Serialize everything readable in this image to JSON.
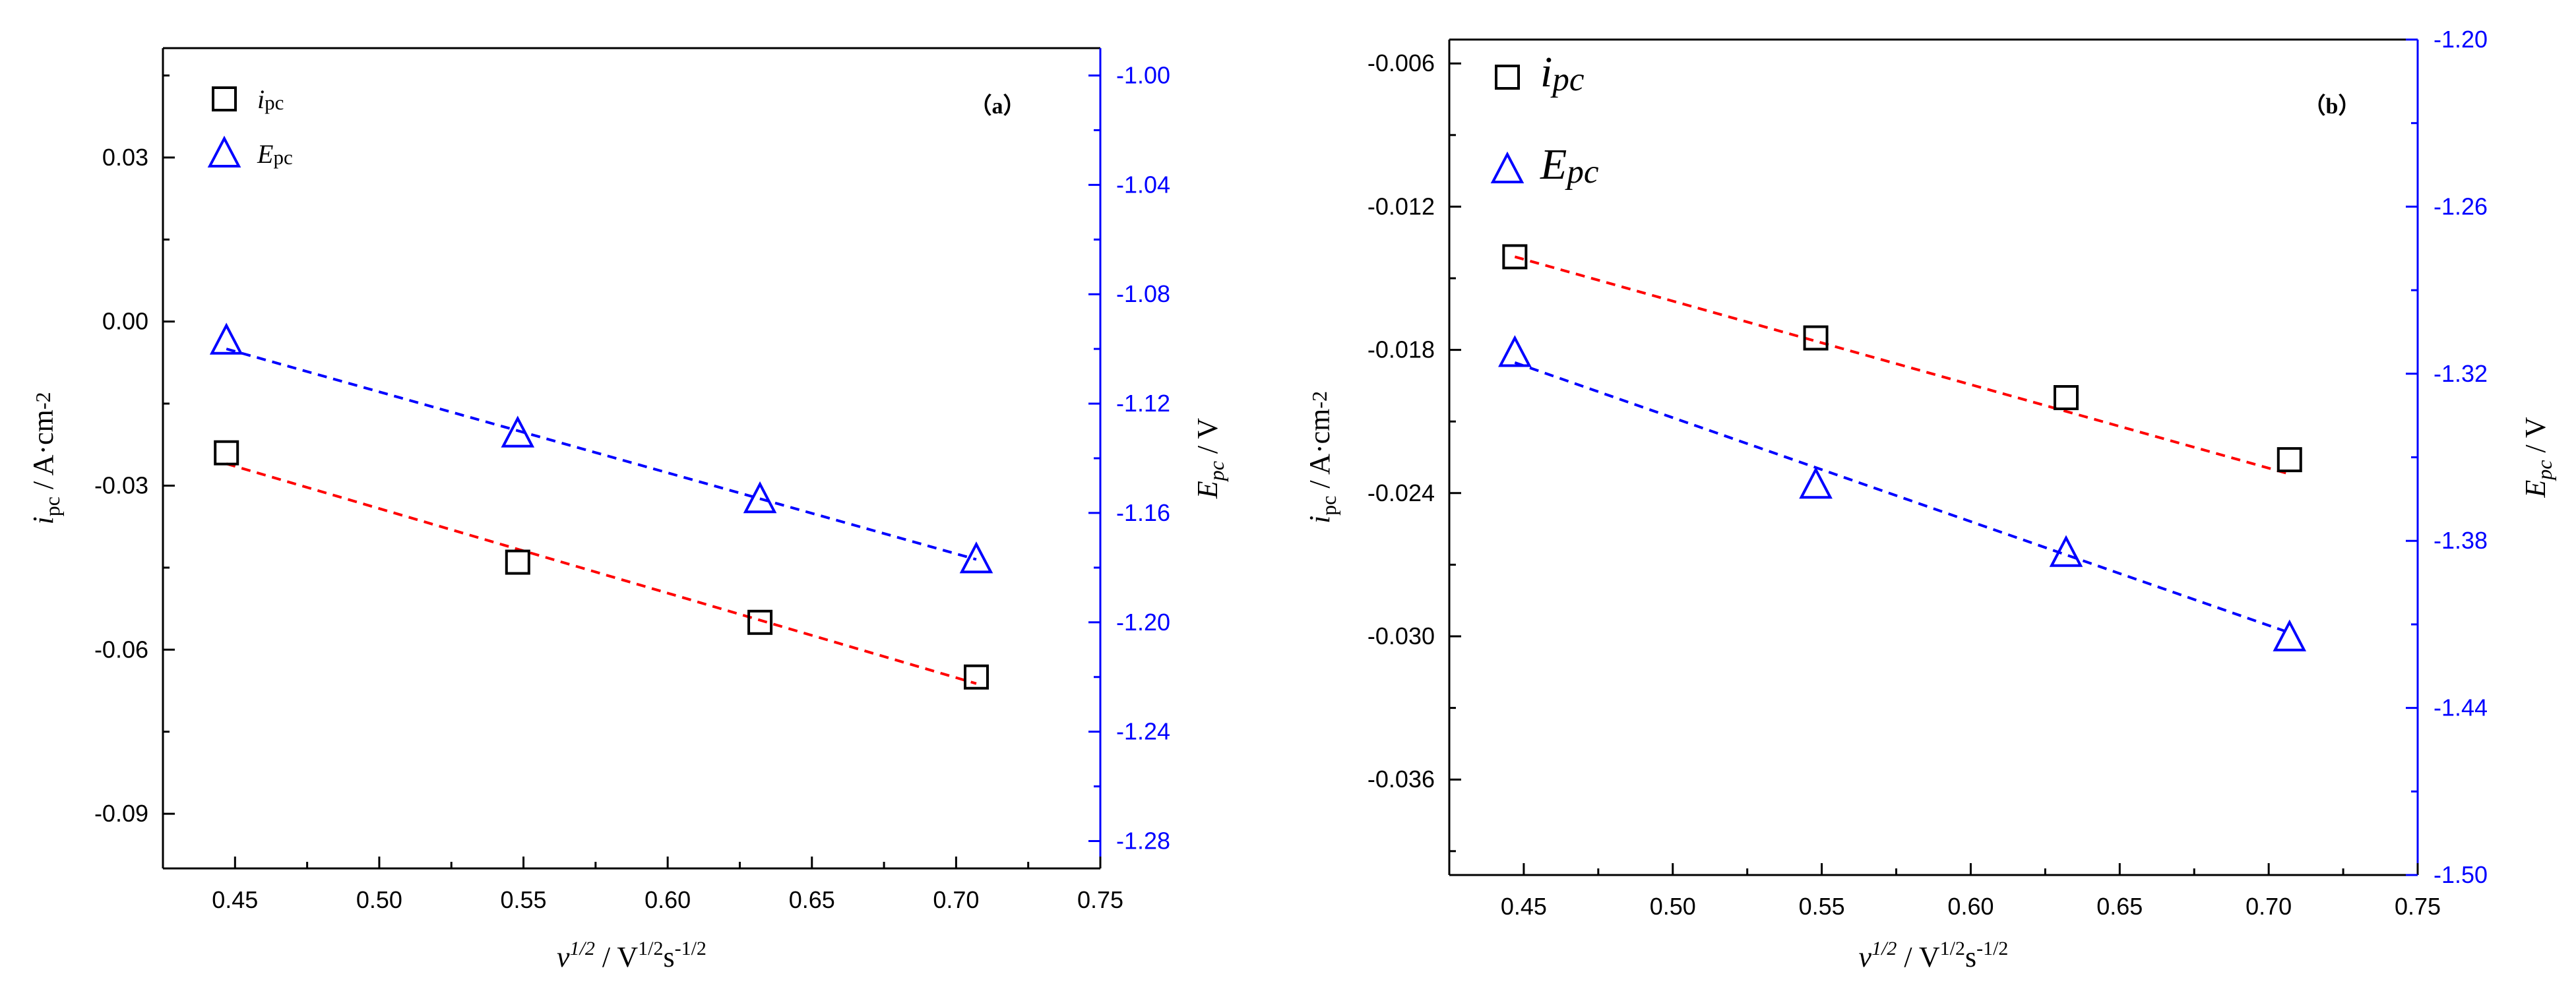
{
  "colors": {
    "black": "#000000",
    "blue": "#0000ff",
    "red": "#ff0000"
  },
  "chart_data": [
    {
      "type": "scatter",
      "panel_label": "（a）",
      "x": [
        0.447,
        0.548,
        0.632,
        0.707
      ],
      "xlim": [
        0.425,
        0.75
      ],
      "xticks": [
        "0.45",
        "0.50",
        "0.55",
        "0.60",
        "0.65",
        "0.70",
        "0.75"
      ],
      "xlabel": {
        "main": "v",
        "sup1": "1/2",
        "unit": " / V",
        "sup2": "1/2",
        "mid": "s",
        "sup3": "-1/2"
      },
      "left_axis": {
        "ylim": [
          -0.1,
          0.05
        ],
        "ticks": [
          "-0.09",
          "-0.06",
          "-0.03",
          "0.00",
          "0.03"
        ],
        "label": {
          "main": "i",
          "sub": "pc",
          "unit": " / A·cm",
          "sup": "-2"
        }
      },
      "right_axis": {
        "ylim": [
          -1.29,
          -0.99
        ],
        "ticks": [
          "-1.28",
          "-1.24",
          "-1.20",
          "-1.16",
          "-1.12",
          "-1.08",
          "-1.04",
          "-1.00"
        ],
        "label": {
          "main": "E",
          "sub": "pc",
          "unit": " / V"
        }
      },
      "series": [
        {
          "name": "i",
          "sub": "pc",
          "axis": "left",
          "marker": "square",
          "color": "#000000",
          "values": [
            -0.024,
            -0.044,
            -0.055,
            -0.065
          ],
          "fit": [
            -0.026,
            -0.0662
          ],
          "fit_color": "#ff0000"
        },
        {
          "name": "E",
          "sub": "pc",
          "axis": "right",
          "marker": "triangle",
          "color": "#0000ff",
          "values": [
            -1.097,
            -1.131,
            -1.155,
            -1.177
          ],
          "fit": [
            -1.1,
            -1.177
          ],
          "fit_color": "#0000ff"
        }
      ],
      "legend_style": "plain"
    },
    {
      "type": "scatter",
      "panel_label": "（b）",
      "x": [
        0.447,
        0.548,
        0.632,
        0.707
      ],
      "xlim": [
        0.425,
        0.75
      ],
      "xticks": [
        "0.45",
        "0.50",
        "0.55",
        "0.60",
        "0.65",
        "0.70",
        "0.75"
      ],
      "xlabel": {
        "main": "v",
        "sup1": "1/2",
        "unit": " / V",
        "sup2": "1/2",
        "mid": "s",
        "sup3": "-1/2"
      },
      "left_axis": {
        "ylim": [
          -0.04,
          -0.005
        ],
        "ticks": [
          "-0.036",
          "-0.030",
          "-0.024",
          "-0.018",
          "-0.012",
          "-0.006"
        ],
        "label": {
          "main": "i",
          "sub": "pc",
          "unit": " / A·cm",
          "sup": "-2"
        }
      },
      "right_axis": {
        "ylim": [
          -1.5,
          -1.2
        ],
        "ticks": [
          "-1.50",
          "-1.44",
          "-1.38",
          "-1.32",
          "-1.26",
          "-1.20"
        ],
        "label": {
          "main": "E",
          "sub": "pc",
          "unit": " / V"
        }
      },
      "series": [
        {
          "name": "i",
          "sub": "pc",
          "axis": "left",
          "marker": "square",
          "color": "#000000",
          "values": [
            -0.0141,
            -0.0175,
            -0.02,
            -0.0226
          ],
          "fit": [
            -0.0141,
            -0.0232
          ],
          "fit_color": "#ff0000"
        },
        {
          "name": "E",
          "sub": "pc",
          "axis": "right",
          "marker": "triangle",
          "color": "#0000ff",
          "values": [
            -1.3126,
            -1.3599,
            -1.3844,
            -1.4147
          ],
          "fit": [
            -1.316,
            -1.413
          ],
          "fit_color": "#0000ff"
        }
      ],
      "legend_style": "italic"
    }
  ]
}
